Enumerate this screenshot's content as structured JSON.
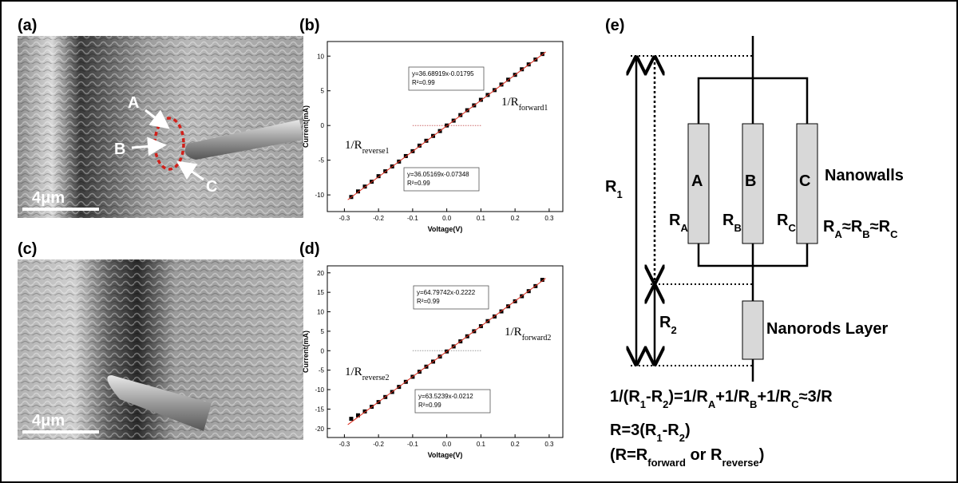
{
  "images": [
    {
      "panel_label": "(a)",
      "markers": [
        "A",
        "B",
        "C"
      ],
      "scale_bar": "4μm"
    },
    {
      "panel_label": "(c)",
      "scale_bar": "4μm"
    }
  ],
  "chart_data": [
    {
      "type": "scatter",
      "panel_label": "(b)",
      "x_label": "Voltage(V)",
      "y_label": "Current(mA)",
      "xlim": [
        -0.35,
        0.34
      ],
      "ylim": [
        -12.4,
        12.1
      ],
      "xticks": [
        -0.3,
        -0.2,
        -0.1,
        {
          "value": 0,
          "label": "0.0"
        },
        0.1,
        0.2,
        0.3
      ],
      "yticks": [
        -10,
        -5,
        0,
        5,
        10
      ],
      "series": [
        {
          "style": "dotted",
          "color": "#cc6666",
          "x": [
            -0.1,
            0.1
          ],
          "values": [
            0,
            0
          ]
        },
        {
          "style": "square",
          "color": "#000000",
          "x": [
            -0.28,
            -0.26,
            -0.24,
            -0.22,
            -0.2,
            -0.18,
            -0.16,
            -0.14,
            -0.12,
            -0.1,
            -0.08,
            -0.06,
            -0.04,
            -0.02,
            0,
            0.02,
            0.04,
            0.06,
            0.08,
            0.1,
            0.12,
            0.14,
            0.16,
            0.18,
            0.2,
            0.22,
            0.24,
            0.26,
            0.28
          ],
          "values": [
            -10.3,
            -9.5,
            -8.8,
            -8.1,
            -7.3,
            -6.6,
            -5.9,
            -5.2,
            -4.4,
            -3.7,
            -2.9,
            -2.2,
            -1.5,
            -0.8,
            0,
            0.7,
            1.5,
            2.2,
            2.9,
            3.7,
            4.4,
            5.1,
            5.9,
            6.6,
            7.3,
            8.1,
            8.8,
            9.5,
            10.3
          ]
        },
        {
          "style": "line",
          "color": "#e03020",
          "x": [
            -0.29,
            0.29
          ],
          "values": [
            -10.7,
            10.6
          ]
        }
      ],
      "equations": [
        [
          "y=36.68919x-0.01795",
          "R²=0.99"
        ],
        [
          "y=36.05169x-0.07348",
          "R²=0.99"
        ]
      ],
      "labels": [
        [
          "1/R",
          "forward1"
        ],
        [
          "1/R",
          "reverse1"
        ]
      ]
    },
    {
      "type": "scatter",
      "panel_label": "(d)",
      "x_label": "Voltage(V)",
      "y_label": "Current(mA)",
      "xlim": [
        -0.35,
        0.34
      ],
      "ylim": [
        -22.3,
        21.8
      ],
      "xticks": [
        -0.3,
        -0.2,
        -0.1,
        {
          "value": 0,
          "label": "0.0"
        },
        0.1,
        0.2,
        0.3
      ],
      "yticks": [
        -20,
        -15,
        -10,
        -5,
        0,
        5,
        10,
        15,
        20
      ],
      "series": [
        {
          "style": "dotted",
          "color": "#999999",
          "x": [
            -0.1,
            0.1
          ],
          "values": [
            0,
            0
          ]
        },
        {
          "style": "square",
          "color": "#000000",
          "x": [
            -0.28,
            -0.26,
            -0.24,
            -0.22,
            -0.2,
            -0.18,
            -0.16,
            -0.14,
            -0.12,
            -0.1,
            -0.08,
            -0.06,
            -0.04,
            -0.02,
            0,
            0.02,
            0.04,
            0.06,
            0.08,
            0.1,
            0.12,
            0.14,
            0.16,
            0.18,
            0.2,
            0.22,
            0.24,
            0.26,
            0.28
          ],
          "values": [
            -17.5,
            -16.6,
            -15.6,
            -14.4,
            -13.2,
            -11.9,
            -10.6,
            -9.3,
            -8.0,
            -6.7,
            -5.4,
            -4.1,
            -2.8,
            -1.5,
            -0.2,
            1.1,
            2.4,
            3.7,
            5.0,
            6.3,
            7.6,
            8.8,
            10.1,
            11.4,
            12.7,
            14.0,
            15.3,
            16.6,
            18.2
          ]
        },
        {
          "style": "line",
          "color": "#e03020",
          "x": [
            -0.29,
            0.29
          ],
          "values": [
            -19.0,
            18.6
          ]
        }
      ],
      "equations": [
        [
          "y=64.79742x-0.2222",
          "R²=0.99"
        ],
        [
          "y=63.5239x-0.0212",
          "R²=0.99"
        ]
      ],
      "labels": [
        [
          "1/R",
          "forward2"
        ],
        [
          "1/R",
          "reverse2"
        ]
      ]
    }
  ],
  "diagram": {
    "panel_label": "(e)",
    "resistors": [
      "A",
      "B",
      "C"
    ],
    "resistances": [
      [
        "R",
        "A"
      ],
      [
        "R",
        "B"
      ],
      [
        "R",
        "C"
      ]
    ],
    "nanowalls": "Nanowalls",
    "equality": [
      "R",
      "A",
      "≈R",
      "B",
      "≈R",
      "C"
    ],
    "r1": [
      "R",
      "1"
    ],
    "r2": [
      "R",
      "2"
    ],
    "nanorods": "Nanorods Layer",
    "formula": [
      "1/(R",
      "1",
      "-R",
      "2",
      ")=1/R",
      "A",
      "+1/R",
      "B",
      "+1/R",
      "C",
      "≈3/R"
    ],
    "relation": [
      "R=3(R",
      "1",
      "-R",
      "2",
      ")"
    ],
    "note": [
      "(R=R",
      "forward",
      " or R",
      "reverse",
      ")"
    ]
  }
}
